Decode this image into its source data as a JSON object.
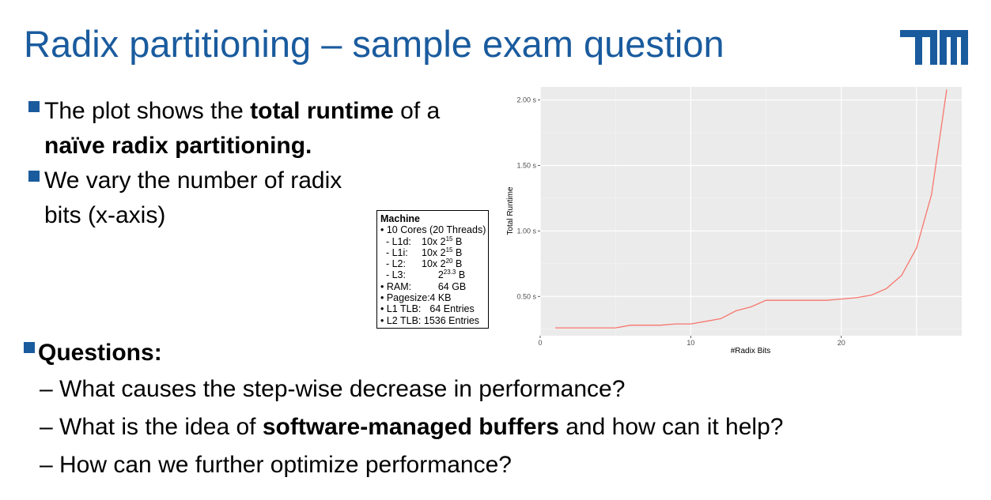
{
  "slide": {
    "title": "Radix partitioning – sample exam question",
    "bullets": [
      {
        "parts": [
          [
            "The plot shows the ",
            false
          ],
          [
            "total runtime",
            true
          ],
          [
            " of a",
            false
          ]
        ],
        "cont": [
          [
            "naïve radix partitioning.",
            true
          ]
        ]
      },
      {
        "parts": [
          [
            "We vary the number of radix",
            false
          ]
        ],
        "cont": [
          [
            "bits (x-axis)",
            false
          ]
        ]
      }
    ],
    "questions_heading": "Questions:",
    "questions": [
      [
        [
          "– What causes the step-wise decrease in performance?",
          false
        ]
      ],
      [
        [
          "– What is the idea of ",
          false
        ],
        [
          "software-managed buffers",
          true
        ],
        [
          " and how can it help?",
          false
        ]
      ],
      [
        [
          "– How can we further optimize performance?",
          false
        ]
      ]
    ]
  },
  "machine_box": {
    "title": "Machine",
    "lines": [
      {
        "label": "• 10 Cores (20 Threads)",
        "value": "",
        "sup": "",
        "unit": ""
      },
      {
        "label": "  - L1d:",
        "value": "10x 2",
        "sup": "15",
        "unit": " B"
      },
      {
        "label": "  - L1i:",
        "value": "10x 2",
        "sup": "15",
        "unit": " B"
      },
      {
        "label": "  - L2:",
        "value": "10x 2",
        "sup": "20",
        "unit": " B"
      },
      {
        "label": "  - L3:",
        "value": "      2",
        "sup": "23.3",
        "unit": " B"
      },
      {
        "label": "• RAM:",
        "value": "      64 GB",
        "sup": "",
        "unit": ""
      },
      {
        "label": "• Pagesize:",
        "value": "   4 KB",
        "sup": "",
        "unit": ""
      },
      {
        "label": "• L1 TLB:",
        "value": "   64 Entries",
        "sup": "",
        "unit": ""
      },
      {
        "label": "• L2 TLB: 1536 Entries",
        "value": "",
        "sup": "",
        "unit": ""
      }
    ]
  },
  "colors": {
    "title": "#1a5b9e",
    "bullet": "#1a5b9e",
    "panel": "#ebebeb",
    "line": "#f8766d"
  },
  "chart_data": {
    "type": "line",
    "xlabel": "#Radix Bits",
    "ylabel": "Total Runtime",
    "xlim": [
      0,
      28
    ],
    "ylim": [
      0.2,
      2.1
    ],
    "x_ticks": [
      0,
      10,
      20
    ],
    "y_ticks": [
      0.5,
      1.0,
      1.5,
      2.0
    ],
    "y_tick_labels": [
      "0.50 s",
      "1.00 s",
      "1.50 s",
      "2.00 s"
    ],
    "grid": true,
    "x": [
      1,
      2,
      3,
      4,
      5,
      6,
      7,
      8,
      9,
      10,
      11,
      12,
      13,
      14,
      15,
      16,
      17,
      18,
      19,
      20,
      21,
      22,
      23,
      24,
      25,
      26,
      27
    ],
    "y": [
      0.26,
      0.26,
      0.26,
      0.26,
      0.26,
      0.28,
      0.28,
      0.28,
      0.29,
      0.29,
      0.31,
      0.33,
      0.39,
      0.42,
      0.47,
      0.47,
      0.47,
      0.47,
      0.47,
      0.48,
      0.49,
      0.51,
      0.56,
      0.66,
      0.87,
      1.28,
      2.08
    ]
  }
}
